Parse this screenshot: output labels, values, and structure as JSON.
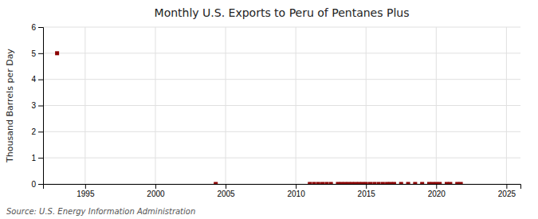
{
  "chart_data": {
    "type": "scatter",
    "title": "Monthly U.S. Exports to Peru of Pentanes Plus",
    "ylabel": "Thousand Barrels per Day",
    "source": "Source: U.S. Energy Information Administration",
    "color": "#8b0000",
    "marker": "square",
    "grid": true,
    "xlim": [
      1992,
      2026
    ],
    "ylim": [
      0,
      6
    ],
    "xticks": [
      1995,
      2000,
      2005,
      2010,
      2015,
      2020,
      2025
    ],
    "yticks": [
      0,
      1,
      2,
      3,
      4,
      5,
      6
    ],
    "x": [
      1993.0,
      2004.3,
      2011.0,
      2011.3,
      2011.6,
      2011.9,
      2012.2,
      2012.5,
      2013.0,
      2013.25,
      2013.5,
      2013.75,
      2014.0,
      2014.25,
      2014.5,
      2014.75,
      2015.0,
      2015.3,
      2015.6,
      2015.9,
      2016.2,
      2016.5,
      2016.75,
      2017.0,
      2017.5,
      2018.0,
      2018.5,
      2019.0,
      2019.5,
      2019.75,
      2020.0,
      2020.25,
      2020.75,
      2021.0,
      2021.5,
      2021.75
    ],
    "values": [
      5.0,
      0.0,
      0.0,
      0.0,
      0.0,
      0.0,
      0.0,
      0.0,
      0.0,
      0.0,
      0.0,
      0.0,
      0.0,
      0.0,
      0.0,
      0.0,
      0.0,
      0.0,
      0.0,
      0.0,
      0.0,
      0.0,
      0.0,
      0.0,
      0.0,
      0.0,
      0.0,
      0.0,
      0.0,
      0.0,
      0.0,
      0.0,
      0.0,
      0.0,
      0.0,
      0.0
    ]
  }
}
